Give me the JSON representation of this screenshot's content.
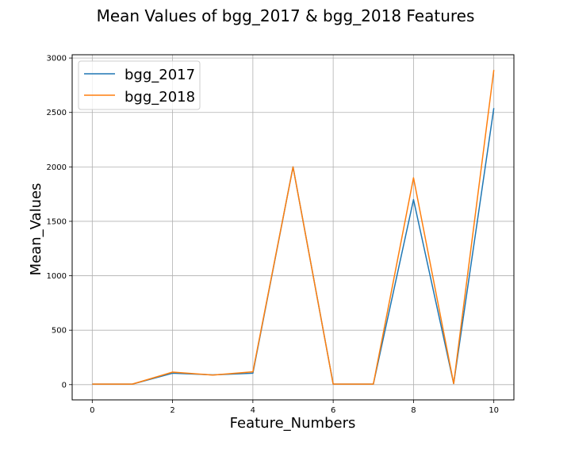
{
  "chart_data": {
    "type": "line",
    "title": "Mean Values of bgg_2017 & bgg_2018 Features",
    "xlabel": "Feature_Numbers",
    "ylabel": "Mean_Values",
    "xlim": [
      -0.5,
      10.5
    ],
    "ylim": [
      -140,
      3030
    ],
    "xticks": [
      0,
      2,
      4,
      6,
      8,
      10
    ],
    "yticks": [
      0,
      500,
      1000,
      1500,
      2000,
      2500,
      3000
    ],
    "grid": true,
    "legend_position": "top-left",
    "x": [
      0,
      1,
      2,
      3,
      4,
      5,
      6,
      7,
      8,
      9,
      10
    ],
    "series": [
      {
        "name": "bgg_2017",
        "color": "#1f77b4",
        "values": [
          5,
          5,
          105,
          90,
          105,
          2000,
          5,
          5,
          1700,
          10,
          2540
        ]
      },
      {
        "name": "bgg_2018",
        "color": "#ff7f0e",
        "values": [
          5,
          5,
          115,
          88,
          118,
          2000,
          5,
          5,
          1900,
          10,
          2890
        ]
      }
    ]
  }
}
